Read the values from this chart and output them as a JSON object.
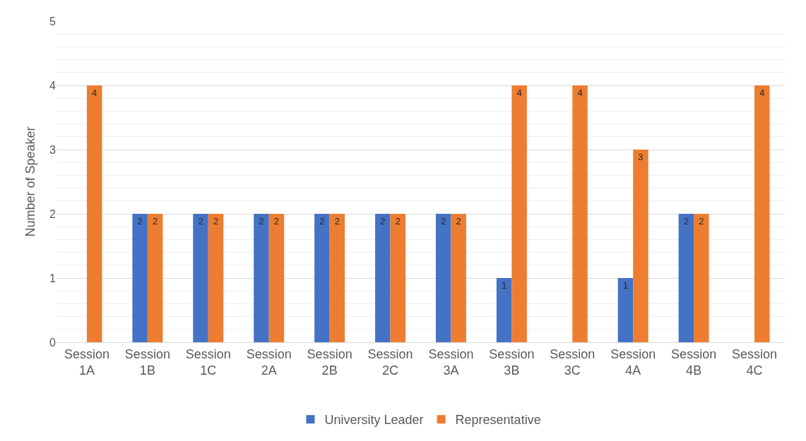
{
  "chart_data": {
    "type": "bar",
    "ylabel": "Number of Speaker",
    "categories": [
      "Session 1A",
      "Session 1B",
      "Session 1C",
      "Session 2A",
      "Session 2B",
      "Session 2C",
      "Session 3A",
      "Session 3B",
      "Session 3C",
      "Session 4A",
      "Session 4B",
      "Session 4C"
    ],
    "series": [
      {
        "name": "University Leader",
        "color": "#4472c4",
        "values": [
          0,
          2,
          2,
          2,
          2,
          2,
          2,
          1,
          0,
          1,
          2,
          0
        ],
        "value_labels": [
          null,
          "2",
          "2",
          "2",
          "2",
          "2",
          "2",
          "1",
          null,
          "1",
          "2",
          null
        ]
      },
      {
        "name": "Representative",
        "color": "#ed7d31",
        "values": [
          4,
          2,
          2,
          2,
          2,
          2,
          2,
          4,
          4,
          3,
          2,
          4
        ],
        "value_labels": [
          "4",
          "2",
          "2",
          "2",
          "2",
          "2",
          "2",
          "4",
          "4",
          "3",
          "2",
          "4"
        ]
      }
    ],
    "ylim": [
      0,
      5
    ],
    "yticks": [
      0,
      1,
      2,
      3,
      4,
      5
    ],
    "grid": "y",
    "legend": "bottom"
  }
}
